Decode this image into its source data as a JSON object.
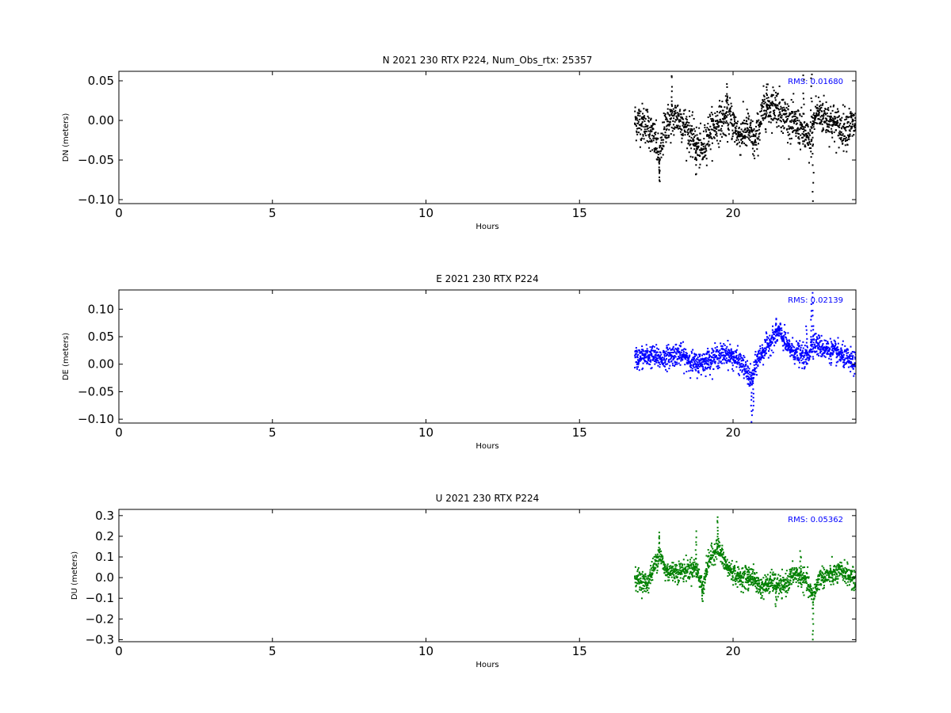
{
  "chart_data": [
    {
      "type": "scatter",
      "title": "N 2021 230 RTX  P224, Num_Obs_rtx: 25357",
      "xlabel": "Hours",
      "ylabel": "DN (meters)",
      "xlim": [
        0,
        24
      ],
      "ylim": [
        -0.105,
        0.062
      ],
      "xticks": [
        0,
        5,
        10,
        15,
        20
      ],
      "yticks": [
        0.05,
        0.0,
        -0.05,
        -0.1
      ],
      "ytick_labels": [
        "0.05",
        "0.00",
        "−0.05",
        "−0.10"
      ],
      "series_color": "#000000",
      "annotation": "RMS:  0.01680",
      "annotation_color": "#0000ff",
      "grid": false,
      "x_range": [
        16.8,
        24
      ],
      "trend": [
        [
          16.8,
          0.0
        ],
        [
          17.2,
          -0.005
        ],
        [
          17.5,
          -0.03
        ],
        [
          17.6,
          -0.05
        ],
        [
          17.8,
          -0.005
        ],
        [
          18.2,
          0.005
        ],
        [
          18.5,
          -0.01
        ],
        [
          18.8,
          -0.03
        ],
        [
          19.0,
          -0.04
        ],
        [
          19.2,
          -0.015
        ],
        [
          19.6,
          0.0
        ],
        [
          19.9,
          0.005
        ],
        [
          20.2,
          -0.02
        ],
        [
          20.5,
          -0.01
        ],
        [
          20.7,
          -0.03
        ],
        [
          21.0,
          0.015
        ],
        [
          21.4,
          0.02
        ],
        [
          21.8,
          0.0
        ],
        [
          22.2,
          -0.01
        ],
        [
          22.5,
          -0.03
        ],
        [
          22.7,
          0.01
        ],
        [
          23.0,
          0.005
        ],
        [
          23.5,
          -0.01
        ],
        [
          24.0,
          -0.005
        ]
      ],
      "noise": 0.012,
      "spikes": [
        [
          22.6,
          -0.102
        ],
        [
          22.55,
          0.06
        ],
        [
          18.0,
          0.058
        ],
        [
          17.6,
          -0.078
        ],
        [
          18.8,
          -0.068
        ],
        [
          22.3,
          0.055
        ],
        [
          19.8,
          0.045
        ],
        [
          21.1,
          0.045
        ]
      ]
    },
    {
      "type": "scatter",
      "title": "E 2021 230 RTX  P224",
      "xlabel": "Hours",
      "ylabel": "DE (meters)",
      "xlim": [
        0,
        24
      ],
      "ylim": [
        -0.107,
        0.135
      ],
      "xticks": [
        0,
        5,
        10,
        15,
        20
      ],
      "yticks": [
        0.1,
        0.05,
        0.0,
        -0.05,
        -0.1
      ],
      "ytick_labels": [
        "0.10",
        "0.05",
        "0.00",
        "−0.05",
        "−0.10"
      ],
      "series_color": "#0000ff",
      "annotation": "RMS:  0.02139",
      "annotation_color": "#0000ff",
      "grid": false,
      "x_range": [
        16.8,
        24
      ],
      "trend": [
        [
          16.8,
          0.01
        ],
        [
          17.3,
          0.015
        ],
        [
          17.7,
          0.01
        ],
        [
          18.2,
          0.02
        ],
        [
          18.8,
          0.0
        ],
        [
          19.3,
          0.01
        ],
        [
          19.8,
          0.02
        ],
        [
          20.3,
          0.0
        ],
        [
          20.6,
          -0.03
        ],
        [
          20.8,
          0.01
        ],
        [
          21.2,
          0.04
        ],
        [
          21.5,
          0.06
        ],
        [
          21.8,
          0.03
        ],
        [
          22.1,
          0.02
        ],
        [
          22.4,
          0.01
        ],
        [
          22.6,
          0.04
        ],
        [
          22.9,
          0.03
        ],
        [
          23.4,
          0.02
        ],
        [
          24.0,
          0.0
        ]
      ],
      "noise": 0.01,
      "spikes": [
        [
          20.6,
          -0.103
        ],
        [
          22.6,
          0.132
        ],
        [
          22.55,
          0.105
        ],
        [
          20.65,
          -0.085
        ],
        [
          21.4,
          0.08
        ],
        [
          22.4,
          0.07
        ]
      ]
    },
    {
      "type": "scatter",
      "title": "U 2021 230 RTX  P224",
      "xlabel": "Hours",
      "ylabel": "DU (meters)",
      "xlim": [
        0,
        24
      ],
      "ylim": [
        -0.31,
        0.33
      ],
      "xticks": [
        0,
        5,
        10,
        15,
        20
      ],
      "yticks": [
        0.3,
        0.2,
        0.1,
        0.0,
        -0.1,
        -0.2,
        -0.3
      ],
      "ytick_labels": [
        "0.3",
        "0.2",
        "0.1",
        "0.0",
        "−0.1",
        "−0.2",
        "−0.3"
      ],
      "series_color": "#008000",
      "annotation": "RMS:  0.05362",
      "annotation_color": "#0000ff",
      "grid": false,
      "x_range": [
        16.8,
        24
      ],
      "trend": [
        [
          16.8,
          0.0
        ],
        [
          17.2,
          -0.03
        ],
        [
          17.5,
          0.08
        ],
        [
          17.6,
          0.12
        ],
        [
          17.8,
          0.03
        ],
        [
          18.3,
          0.03
        ],
        [
          18.8,
          0.05
        ],
        [
          19.0,
          -0.05
        ],
        [
          19.2,
          0.08
        ],
        [
          19.5,
          0.15
        ],
        [
          19.8,
          0.05
        ],
        [
          20.2,
          0.0
        ],
        [
          20.6,
          0.01
        ],
        [
          20.9,
          -0.05
        ],
        [
          21.3,
          -0.02
        ],
        [
          21.6,
          -0.05
        ],
        [
          22.0,
          0.02
        ],
        [
          22.4,
          -0.02
        ],
        [
          22.6,
          -0.1
        ],
        [
          22.8,
          0.0
        ],
        [
          23.2,
          0.01
        ],
        [
          23.6,
          0.03
        ],
        [
          24.0,
          -0.02
        ]
      ],
      "noise": 0.025,
      "spikes": [
        [
          22.6,
          -0.3
        ],
        [
          19.5,
          0.3
        ],
        [
          17.6,
          0.22
        ],
        [
          19.0,
          -0.12
        ],
        [
          22.2,
          0.12
        ],
        [
          20.5,
          -0.06
        ],
        [
          18.8,
          0.22
        ],
        [
          21.4,
          -0.14
        ]
      ]
    }
  ]
}
